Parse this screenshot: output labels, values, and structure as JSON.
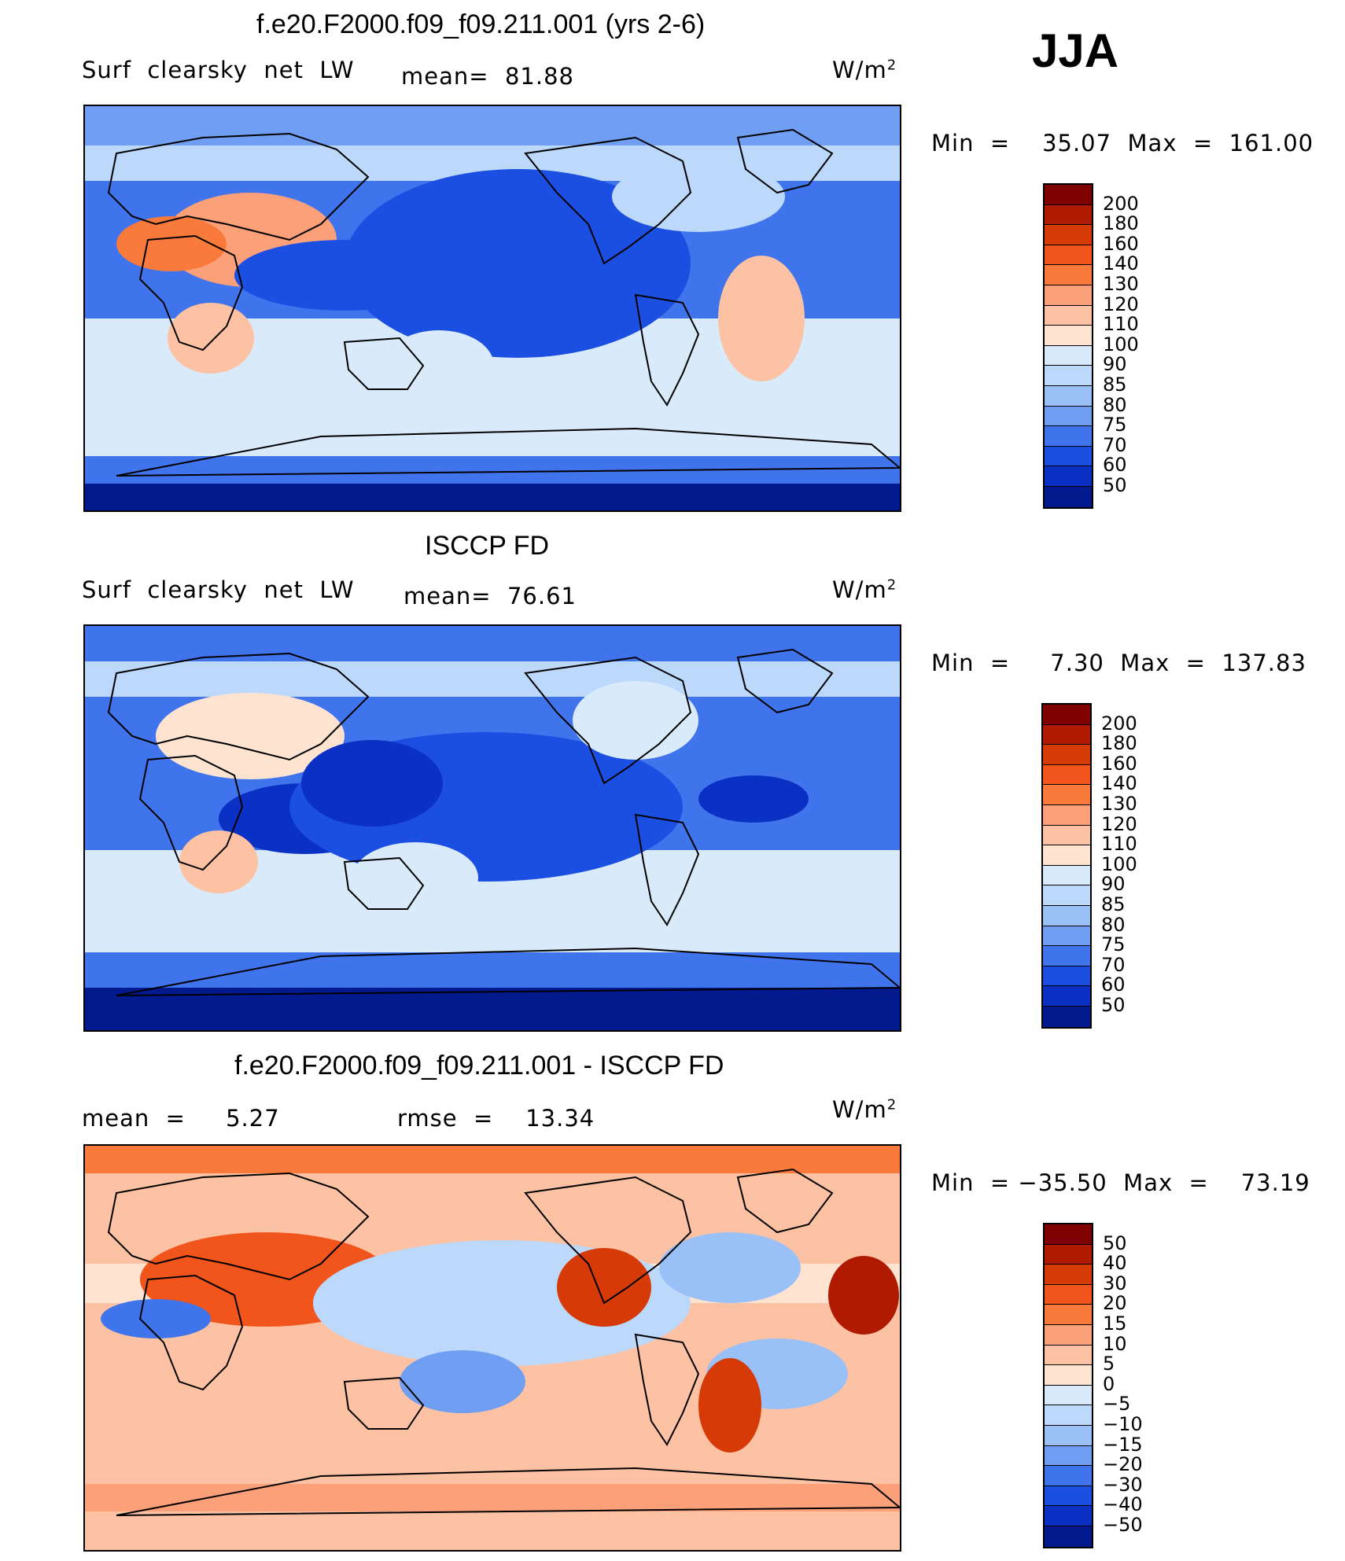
{
  "season": "JJA",
  "units": "W/m",
  "units_sup": "2",
  "panels": [
    {
      "title": "f.e20.F2000.f09_f09.211.001 (yrs 2-6)",
      "variable": "Surf  clearsky  net  LW",
      "stat1": "mean=  81.88",
      "stat2": "",
      "minmax": "Min  =    35.07  Max  =  161.00"
    },
    {
      "title": "ISCCP FD",
      "variable": "Surf  clearsky  net  LW",
      "stat1": "mean=  76.61",
      "stat2": "",
      "minmax": "Min  =     7.30  Max  =  137.83"
    },
    {
      "title": "f.e20.F2000.f09_f09.211.001 - ISCCP FD",
      "variable": "",
      "stat1": "mean  =     5.27",
      "stat2": "rmse  =    13.34",
      "minmax": "Min  = −35.50  Max  =    73.19"
    }
  ],
  "colorbars": {
    "main": {
      "labels": [
        "200",
        "180",
        "160",
        "140",
        "130",
        "120",
        "110",
        "100",
        "90",
        "85",
        "80",
        "75",
        "70",
        "60",
        "50"
      ],
      "colors": [
        "#7f0000",
        "#b01a00",
        "#d63a06",
        "#f2551c",
        "#fa7a3c",
        "#fca07a",
        "#fdc2a3",
        "#fde3d0",
        "#d9ebfb",
        "#bcd8fb",
        "#9ac0f8",
        "#6f9ef2",
        "#3f74ec",
        "#1b4fe2",
        "#0b30c4",
        "#021a8e"
      ]
    },
    "diff": {
      "labels": [
        "50",
        "40",
        "30",
        "20",
        "15",
        "10",
        "5",
        "0",
        "−5",
        "−10",
        "−15",
        "−20",
        "−30",
        "−40",
        "−50"
      ],
      "colors": [
        "#7f0000",
        "#b01a00",
        "#d63a06",
        "#f2551c",
        "#fa7a3c",
        "#fca07a",
        "#fdc2a3",
        "#fde3d0",
        "#d9ebfb",
        "#bcd8fb",
        "#9ac0f8",
        "#6f9ef2",
        "#3f74ec",
        "#1b4fe2",
        "#0b30c4",
        "#021a8e"
      ]
    }
  }
}
